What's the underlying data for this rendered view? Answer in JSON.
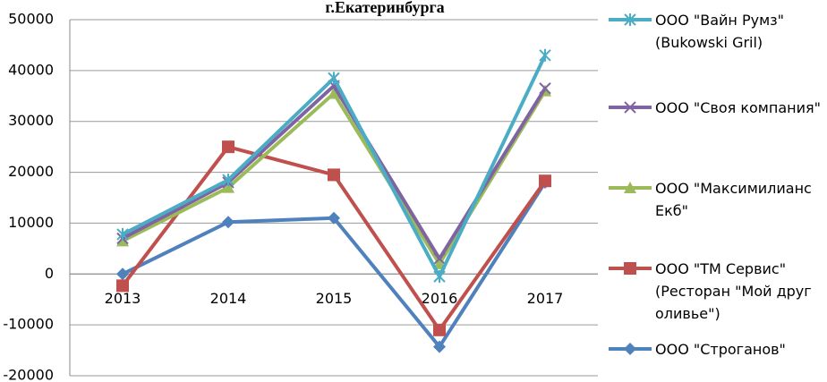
{
  "chart_data": {
    "type": "line",
    "title": "г.Екатеринбурга",
    "categories": [
      "2013",
      "2014",
      "2015",
      "2016",
      "2017"
    ],
    "series": [
      {
        "name": "ООО \"Вайн Румз\" (Bukowski Gril)",
        "color": "#4bacc6",
        "marker": "star",
        "values": [
          7800,
          18500,
          38500,
          -500,
          43000
        ]
      },
      {
        "name": "ООО \"Своя компания\"",
        "color": "#8064a2",
        "marker": "x",
        "values": [
          7000,
          18000,
          37000,
          3000,
          36500
        ]
      },
      {
        "name": "ООО \"Максимилианс Екб\"",
        "color": "#9bbb59",
        "marker": "triangle",
        "values": [
          6500,
          17000,
          35500,
          2000,
          36000
        ]
      },
      {
        "name": "ООО \"ТМ Сервис\" (Ресторан \"Мой друг оливье\")",
        "color": "#c0504d",
        "marker": "square",
        "values": [
          -2300,
          25000,
          19500,
          -11000,
          18300
        ]
      },
      {
        "name": "ООО \"Строганов\"",
        "color": "#4f81bd",
        "marker": "diamond",
        "values": [
          0,
          10200,
          11000,
          -14300,
          18000
        ]
      }
    ],
    "ylim": [
      -20000,
      50000
    ],
    "yticks": [
      -20000,
      -10000,
      0,
      10000,
      20000,
      30000,
      40000,
      50000
    ],
    "grid": true
  }
}
